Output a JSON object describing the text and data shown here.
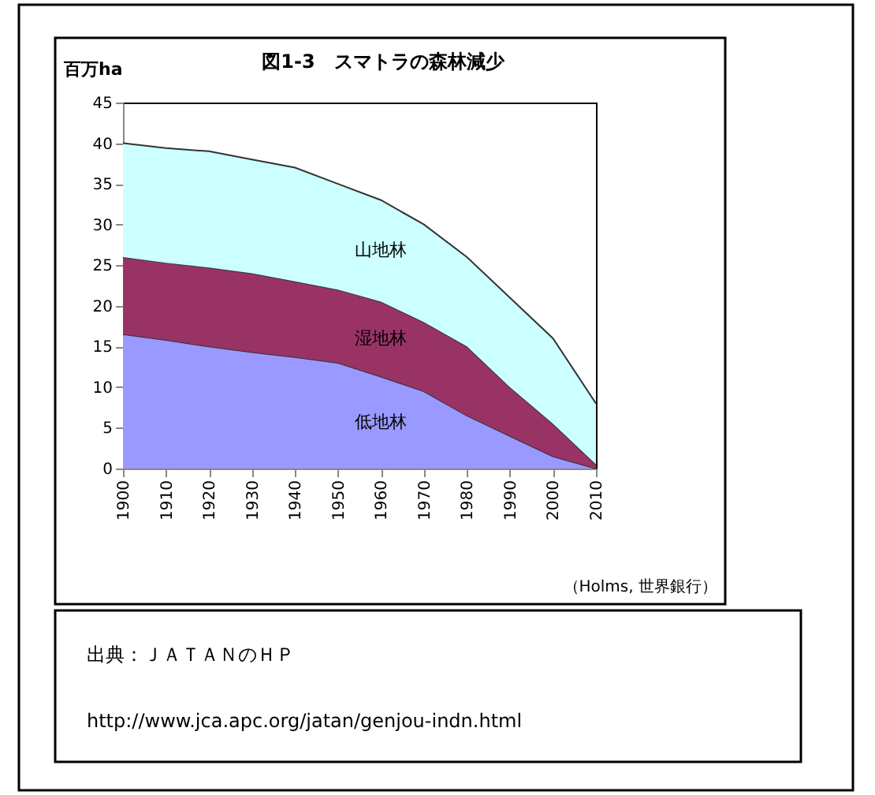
{
  "chart_data": {
    "type": "area",
    "title": "図1-3　スマトラの森林減少",
    "ylabel": "百万ha",
    "stacked": true,
    "x": [
      1900,
      1910,
      1920,
      1930,
      1940,
      1950,
      1960,
      1970,
      1980,
      1990,
      2000,
      2010
    ],
    "series": [
      {
        "name": "低地林",
        "color": "#9999ff",
        "values": [
          16.5,
          15.8,
          15,
          14.3,
          13.7,
          13,
          11.3,
          9.5,
          6.5,
          4,
          1.5,
          0
        ]
      },
      {
        "name": "湿地林",
        "color": "#993366",
        "values": [
          9.5,
          9.5,
          9.7,
          9.7,
          9.3,
          9,
          9.2,
          8.5,
          8.5,
          6,
          4,
          0.5
        ]
      },
      {
        "name": "山地林",
        "color": "#ccffff",
        "values": [
          14,
          14.1,
          14.3,
          14,
          14,
          13,
          12.5,
          12,
          11,
          11,
          10.5,
          7.5
        ]
      }
    ],
    "xlim": [
      1900,
      2010
    ],
    "xticks": [
      1900,
      1910,
      1920,
      1930,
      1940,
      1950,
      1960,
      1970,
      1980,
      1990,
      2000,
      2010
    ],
    "ylim": [
      0,
      45
    ],
    "yticks": [
      0,
      5,
      10,
      15,
      20,
      25,
      30,
      35,
      40,
      45
    ],
    "grid": false,
    "annotations": [
      "（Holms, 世界銀行）",
      "出典：ＪＡＴＡＮのＨＰ",
      "http://www.jca.apc.org/jatan/genjou-indn.html"
    ]
  }
}
